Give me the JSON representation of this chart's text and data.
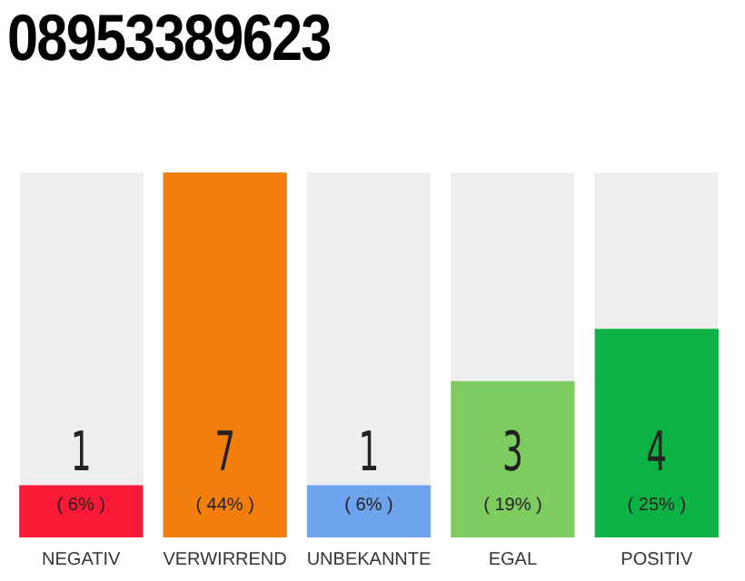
{
  "chart_data": {
    "type": "bar",
    "title": "08953389623",
    "categories": [
      "NEGATIV",
      "VERWIRREND",
      "UNBEKANNTE",
      "EGAL",
      "POSITIV"
    ],
    "values": [
      1,
      7,
      1,
      3,
      4
    ],
    "colors": [
      "#fa1a38",
      "#f27e0c",
      "#6ea4ee",
      "#7ecb60",
      "#0db244"
    ],
    "ylim": [
      0,
      7
    ],
    "tick_labels": "x",
    "grid": false,
    "legend": false,
    "data_labels": true,
    "annotations": [
      "( 6% )",
      "( 44% )",
      "( 6% )",
      "( 19% )",
      "( 25% )"
    ]
  }
}
